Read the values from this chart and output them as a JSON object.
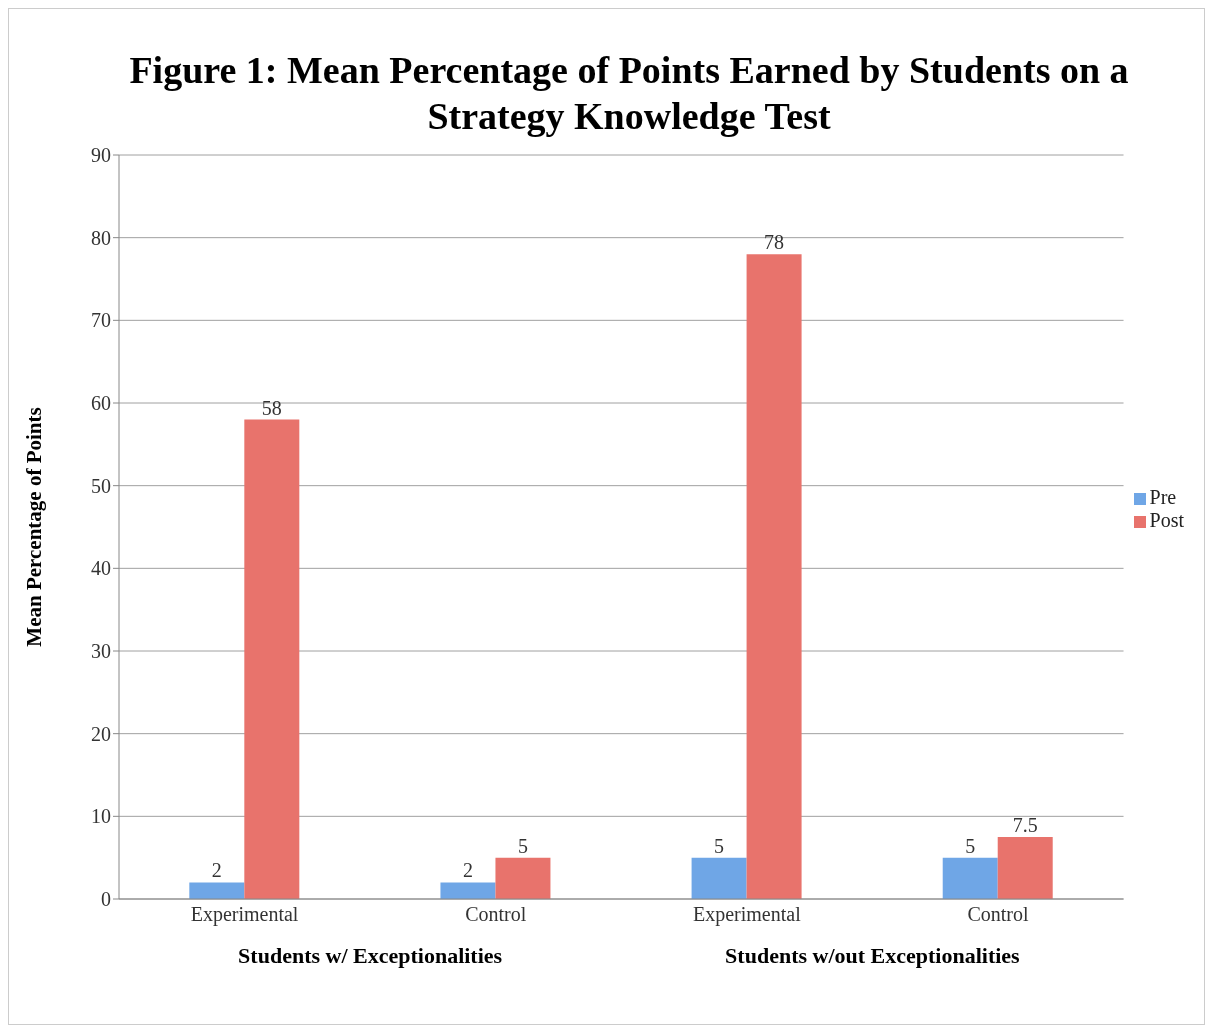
{
  "chart_data": {
    "type": "bar",
    "title": "Figure 1: Mean Percentage of Points Earned by Students on a Strategy Knowledge Test",
    "ylabel": "Mean Percentage of Points",
    "categories": [
      "Experimental",
      "Control",
      "Experimental",
      "Control"
    ],
    "annotations": [
      "Students w/ Exceptionalities",
      "Students w/out Exceptionalities"
    ],
    "series": [
      {
        "name": "Pre",
        "color": "#6fa6e6",
        "values": [
          2,
          2,
          5,
          5
        ]
      },
      {
        "name": "Post",
        "color": "#e8736c",
        "values": [
          58,
          5,
          78,
          7.5
        ]
      }
    ],
    "ylim": [
      0,
      90
    ],
    "yticks": [
      0,
      10,
      20,
      30,
      40,
      50,
      60,
      70,
      80,
      90
    ],
    "grid": "y",
    "legend": "right",
    "data_labels": true
  }
}
